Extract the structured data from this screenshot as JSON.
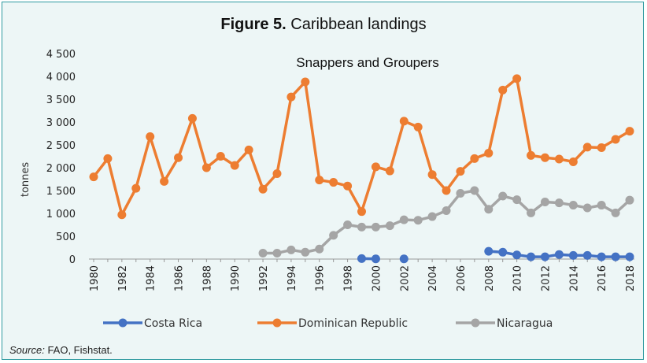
{
  "figure": {
    "label": "Figure 5.",
    "title": "Caribbean landings"
  },
  "source": {
    "label": "Source:",
    "text": "FAO, Fishstat."
  },
  "chart_data": {
    "type": "line",
    "subtitle": "Snappers and Groupers",
    "ylabel": "tonnes",
    "xlabel": "",
    "ylim": [
      0,
      4500
    ],
    "yticks": [
      0,
      500,
      1000,
      1500,
      2000,
      2500,
      3000,
      3500,
      4000,
      4500
    ],
    "ytick_labels": [
      "0",
      "500",
      "1 000",
      "1 500",
      "2 000",
      "2 500",
      "3 000",
      "3 500",
      "4 000",
      "4 500"
    ],
    "xlim": [
      1980,
      2018
    ],
    "xticks": [
      1980,
      1982,
      1984,
      1986,
      1988,
      1990,
      1992,
      1994,
      1996,
      1998,
      2000,
      2002,
      2004,
      2006,
      2008,
      2010,
      2012,
      2014,
      2016,
      2018
    ],
    "grid": false,
    "legend_position": "bottom",
    "series": [
      {
        "name": "Costa Rica",
        "color": "#4472c4",
        "points": [
          [
            1999,
            10
          ],
          [
            2000,
            5
          ],
          [
            2002,
            5
          ],
          [
            2008,
            170
          ],
          [
            2009,
            150
          ],
          [
            2010,
            90
          ],
          [
            2011,
            50
          ],
          [
            2012,
            50
          ],
          [
            2013,
            100
          ],
          [
            2014,
            80
          ],
          [
            2015,
            80
          ],
          [
            2016,
            50
          ],
          [
            2017,
            50
          ],
          [
            2018,
            50
          ]
        ]
      },
      {
        "name": "Dominican Republic",
        "color": "#ed7d31",
        "points": [
          [
            1980,
            1800
          ],
          [
            1981,
            2200
          ],
          [
            1982,
            970
          ],
          [
            1983,
            1550
          ],
          [
            1984,
            2680
          ],
          [
            1985,
            1700
          ],
          [
            1986,
            2220
          ],
          [
            1987,
            3080
          ],
          [
            1988,
            2000
          ],
          [
            1989,
            2250
          ],
          [
            1990,
            2050
          ],
          [
            1991,
            2390
          ],
          [
            1992,
            1530
          ],
          [
            1993,
            1870
          ],
          [
            1994,
            3550
          ],
          [
            1995,
            3880
          ],
          [
            1996,
            1730
          ],
          [
            1997,
            1680
          ],
          [
            1998,
            1600
          ],
          [
            1999,
            1040
          ],
          [
            2000,
            2020
          ],
          [
            2001,
            1930
          ],
          [
            2002,
            3020
          ],
          [
            2003,
            2890
          ],
          [
            2004,
            1850
          ],
          [
            2005,
            1500
          ],
          [
            2006,
            1920
          ],
          [
            2007,
            2200
          ],
          [
            2008,
            2320
          ],
          [
            2009,
            3700
          ],
          [
            2010,
            3950
          ],
          [
            2011,
            2270
          ],
          [
            2012,
            2220
          ],
          [
            2013,
            2190
          ],
          [
            2014,
            2130
          ],
          [
            2015,
            2450
          ],
          [
            2016,
            2440
          ],
          [
            2017,
            2620
          ],
          [
            2018,
            2800
          ]
        ]
      },
      {
        "name": "Nicaragua",
        "color": "#a5a5a5",
        "points": [
          [
            1992,
            130
          ],
          [
            1993,
            130
          ],
          [
            1994,
            200
          ],
          [
            1995,
            150
          ],
          [
            1996,
            220
          ],
          [
            1997,
            520
          ],
          [
            1998,
            750
          ],
          [
            1999,
            700
          ],
          [
            2000,
            700
          ],
          [
            2001,
            730
          ],
          [
            2002,
            860
          ],
          [
            2003,
            850
          ],
          [
            2004,
            930
          ],
          [
            2005,
            1060
          ],
          [
            2006,
            1440
          ],
          [
            2007,
            1500
          ],
          [
            2008,
            1090
          ],
          [
            2009,
            1380
          ],
          [
            2010,
            1300
          ],
          [
            2011,
            1010
          ],
          [
            2012,
            1250
          ],
          [
            2013,
            1230
          ],
          [
            2014,
            1180
          ],
          [
            2015,
            1120
          ],
          [
            2016,
            1180
          ],
          [
            2017,
            1010
          ],
          [
            2018,
            1290
          ]
        ]
      }
    ]
  }
}
